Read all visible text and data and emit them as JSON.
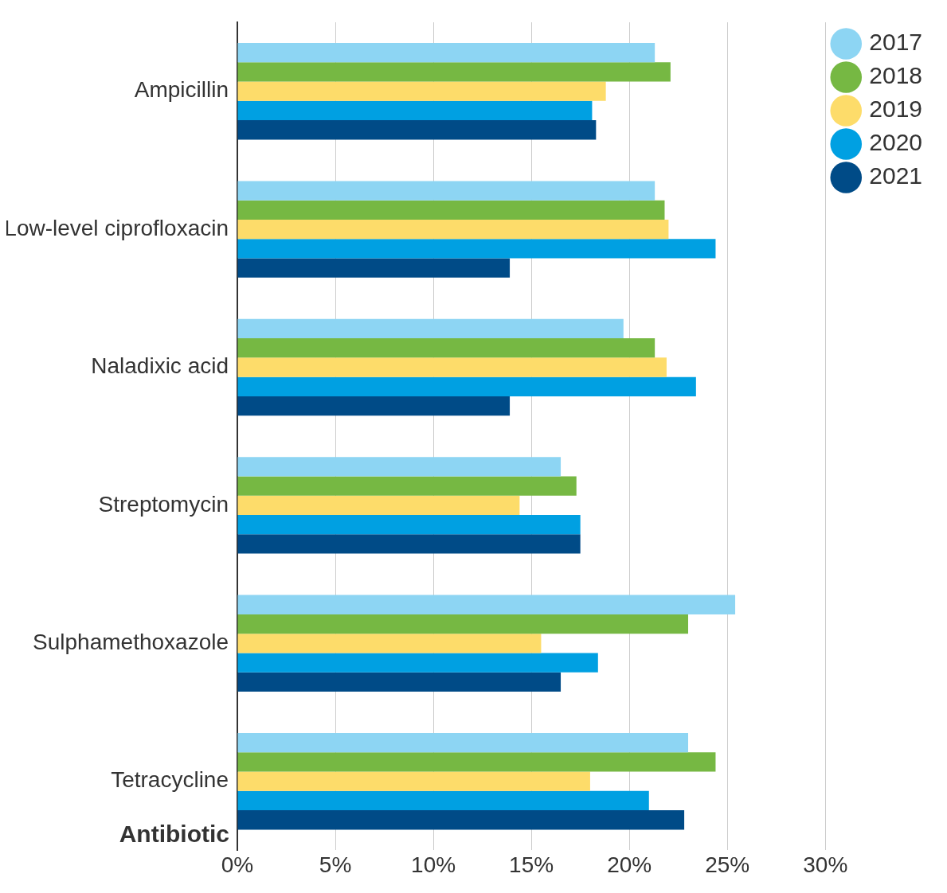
{
  "chart_data": {
    "type": "bar",
    "orientation": "horizontal",
    "ylabel": "Antibiotic",
    "categories": [
      "Ampicillin",
      "Low-level ciprofloxacin",
      "Naladixic acid",
      "Streptomycin",
      "Sulphamethoxazole",
      "Tetracycline"
    ],
    "series": [
      {
        "name": "2017",
        "color": "#8dd5f3",
        "values": [
          21.3,
          21.3,
          19.7,
          16.5,
          25.4,
          23.0
        ]
      },
      {
        "name": "2018",
        "color": "#76b843",
        "values": [
          22.1,
          21.8,
          21.3,
          17.3,
          23.0,
          24.4
        ]
      },
      {
        "name": "2019",
        "color": "#fddc6a",
        "values": [
          18.8,
          22.0,
          21.9,
          14.4,
          15.5,
          18.0
        ]
      },
      {
        "name": "2020",
        "color": "#00a0e2",
        "values": [
          18.1,
          24.4,
          23.4,
          17.5,
          18.4,
          21.0
        ]
      },
      {
        "name": "2021",
        "color": "#004b87",
        "values": [
          18.3,
          13.9,
          13.9,
          17.5,
          16.5,
          22.8
        ]
      }
    ],
    "xlim": [
      0,
      30
    ],
    "xticks": [
      {
        "value": 0,
        "label": "0%"
      },
      {
        "value": 5,
        "label": "5%"
      },
      {
        "value": 10,
        "label": "10%"
      },
      {
        "value": 15,
        "label": "15%"
      },
      {
        "value": 20,
        "label": "20%"
      },
      {
        "value": 25,
        "label": "25%"
      },
      {
        "value": 30,
        "label": "30%"
      }
    ],
    "grid": "x",
    "legend": "top right"
  }
}
